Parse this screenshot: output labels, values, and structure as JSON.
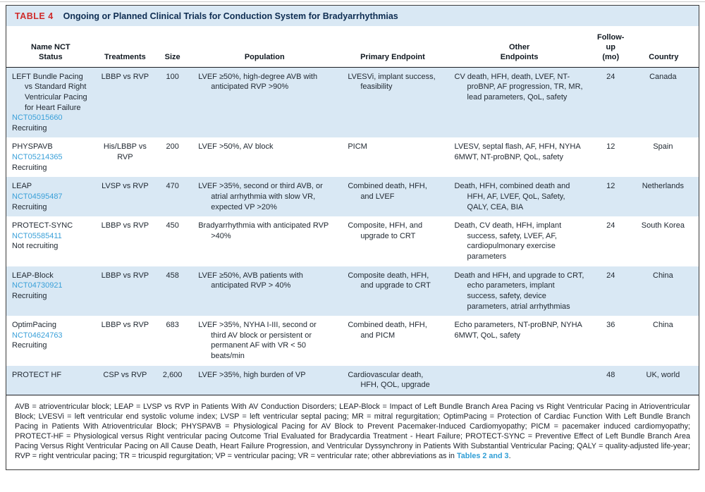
{
  "table": {
    "label": "TABLE 4",
    "title": "Ongoing or Planned Clinical Trials for Conduction System for Bradyarrhythmias",
    "columns": [
      "Name NCT\nStatus",
      "Treatments",
      "Size",
      "Population",
      "Primary Endpoint",
      "Other\nEndpoints",
      "Follow-up\n(mo)",
      "Country"
    ],
    "rows": [
      {
        "name": "LEFT Bundle Pacing vs Standard Right Ventricular Pacing for Heart Failure",
        "nct": "NCT05015660",
        "status": "Recruiting",
        "treatments": "LBBP vs RVP",
        "size": "100",
        "population": "LVEF ≥50%, high-degree AVB with anticipated RVP >90%",
        "primary_endpoint": "LVESVi, implant success, feasibility",
        "other_endpoints": [
          "CV death, HFH, death, LVEF, NT-proBNP, AF progression, TR, MR, lead parameters, QoL, safety"
        ],
        "follow_up": "24",
        "country": "Canada"
      },
      {
        "name": "PHYSPAVB",
        "nct": "NCT05214365",
        "status": "Recruiting",
        "treatments": "His/LBBP vs RVP",
        "size": "200",
        "population": "LVEF >50%, AV block",
        "primary_endpoint": "PICM",
        "other_endpoints": [
          "LVESV, septal flash, AF, HFH, NYHA",
          "6MWT, NT-proBNP, QoL, safety"
        ],
        "follow_up": "12",
        "country": "Spain"
      },
      {
        "name": "LEAP",
        "nct": "NCT04595487",
        "status": "Recruiting",
        "treatments": "LVSP vs RVP",
        "size": "470",
        "population": "LVEF >35%, second or third AVB, or atrial arrhythmia with slow VR, expected VP >20%",
        "primary_endpoint": "Combined death, HFH, and LVEF",
        "other_endpoints": [
          "Death, HFH, combined death and HFH, AF, LVEF, QoL, Safety, QALY, CEA, BIA"
        ],
        "follow_up": "12",
        "country": "Netherlands"
      },
      {
        "name": "PROTECT-SYNC",
        "nct": "NCT05585411",
        "status": "Not recruiting",
        "treatments": "LBBP vs RVP",
        "size": "450",
        "population": "Bradyarrhythmia with anticipated RVP >40%",
        "primary_endpoint": "Composite, HFH, and upgrade to CRT",
        "other_endpoints": [
          "Death, CV death, HFH, implant success, safety, LVEF, AF, cardiopulmonary exercise parameters"
        ],
        "follow_up": "24",
        "country": "South Korea"
      },
      {
        "name": "LEAP-Block",
        "nct": "NCT04730921",
        "status": "Recruiting",
        "treatments": "LBBP vs RVP",
        "size": "458",
        "population": "LVEF ≥50%, AVB patients with anticipated RVP > 40%",
        "primary_endpoint": "Composite death, HFH, and upgrade to CRT",
        "other_endpoints": [
          "Death and HFH, and upgrade to CRT, echo parameters, implant success, safety, device parameters, atrial arrhythmias"
        ],
        "follow_up": "24",
        "country": "China"
      },
      {
        "name": "OptimPacing",
        "nct": "NCT04624763",
        "status": "Recruiting",
        "treatments": "LBBP vs RVP",
        "size": "683",
        "population": "LVEF >35%, NYHA I-III, second or third AV block or persistent or permanent AF with VR < 50 beats/min",
        "primary_endpoint": "Combined death, HFH, and PICM",
        "other_endpoints": [
          "Echo parameters, NT-proBNP, NYHA",
          "6MWT, QoL, safety"
        ],
        "follow_up": "36",
        "country": "China"
      },
      {
        "name": "PROTECT HF",
        "treatments": "CSP vs RVP",
        "size": "2,600",
        "population": "LVEF >35%, high burden of VP",
        "primary_endpoint": "Cardiovascular death, HFH, QOL, upgrade",
        "other_endpoints": [],
        "follow_up": "48",
        "country": "UK, world"
      }
    ],
    "footnote": {
      "text": "AVB = atrioventricular block; LEAP = LVSP vs RVP in Patients With AV Conduction Disorders; LEAP-Block = Impact of Left Bundle Branch Area Pacing vs Right Ventricular Pacing in Atrioventricular Block; LVESVi = left ventricular end systolic volume index; LVSP = left ventricular septal pacing; MR = mitral regurgitation; OptimPacing = Protection of Cardiac Function With Left Bundle Branch Pacing in Patients With Atrioventricular Block; PHYSPAVB = Physiological Pacing for AV Block to Prevent Pacemaker-Induced Cardiomyopathy; PICM = pacemaker induced cardiomyopathy; PROTECT-HF = Physiological versus Right ventricular pacing Outcome Trial Evaluated for Bradycardia Treatment - Heart Failure; PROTECT-SYNC = Preventive Effect of Left Bundle Branch Area Pacing Versus Right Ventricular Pacing on All Cause Death, Heart Failure Progression, and Ventricular Dyssynchrony in Patients With Substantial Ventricular Pacing; QALY = quality-adjusted life-year; RVP = right ventricular pacing; TR = tricuspid regurgitation; VP = ventricular pacing; VR = ventricular rate; other abbreviations as in ",
      "link": "Tables 2 and 3",
      "suffix": "."
    }
  }
}
